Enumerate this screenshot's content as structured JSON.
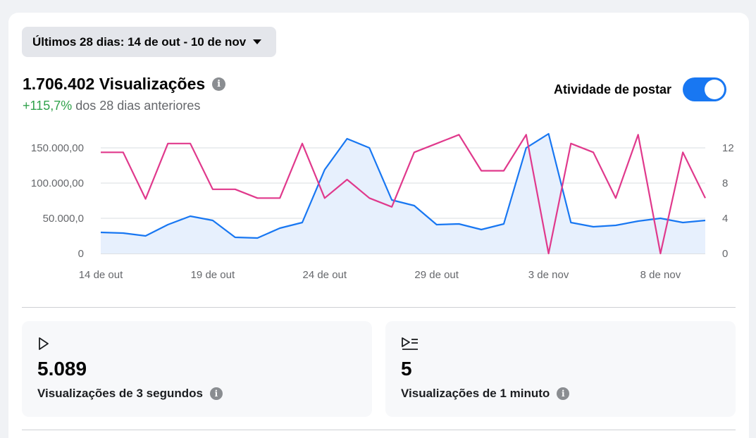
{
  "date_range": {
    "label": "Últimos 28 dias: 14 de out - 10 de nov"
  },
  "metric": {
    "title": "1.706.402 Visualizações",
    "change": "+115,7%",
    "change_suffix": " dos 28 dias anteriores"
  },
  "toggle": {
    "label": "Atividade de postar",
    "on": true
  },
  "chart_data": {
    "type": "line",
    "x": [
      "14 de out",
      "15 de out",
      "16 de out",
      "17 de out",
      "18 de out",
      "19 de out",
      "20 de out",
      "21 de out",
      "22 de out",
      "23 de out",
      "24 de out",
      "25 de out",
      "26 de out",
      "27 de out",
      "28 de out",
      "29 de out",
      "30 de out",
      "31 de out",
      "1 de nov",
      "2 de nov",
      "3 de nov",
      "4 de nov",
      "5 de nov",
      "6 de nov",
      "7 de nov",
      "8 de nov",
      "9 de nov",
      "10 de nov"
    ],
    "x_ticks": [
      "14 de out",
      "19 de out",
      "24 de out",
      "29 de out",
      "3 de nov",
      "8 de nov"
    ],
    "y_left_ticks": [
      "0",
      "50.000,0",
      "100.000,00",
      "150.000,00"
    ],
    "y_left_range": [
      0,
      150000
    ],
    "y_right_ticks": [
      "0",
      "4",
      "8",
      "12"
    ],
    "y_right_range": [
      0,
      12
    ],
    "grid": true,
    "series": [
      {
        "axis": "left",
        "color": "#1877f2",
        "fill": "#e7f0fd",
        "values": [
          30000,
          29000,
          25000,
          41000,
          53000,
          47000,
          23000,
          22000,
          36000,
          44000,
          119000,
          163000,
          150000,
          76000,
          68000,
          41000,
          42000,
          34000,
          42000,
          150000,
          170000,
          44000,
          38000,
          40000,
          46000,
          50000,
          44000,
          47000
        ]
      },
      {
        "axis": "right",
        "color": "#e0398c",
        "values": [
          11.5,
          11.5,
          6.2,
          12.5,
          12.5,
          7.3,
          7.3,
          6.3,
          6.3,
          12.5,
          6.3,
          8.4,
          6.3,
          5.3,
          11.5,
          12.5,
          13.5,
          9.4,
          9.4,
          13.5,
          0,
          12.5,
          11.5,
          6.3,
          13.5,
          0,
          11.5,
          6.3
        ]
      }
    ]
  },
  "stats": [
    {
      "value": "5.089",
      "label": "Visualizações de 3 segundos"
    },
    {
      "value": "5",
      "label": "Visualizações de 1 minuto"
    }
  ],
  "icons": {
    "info": "i"
  }
}
